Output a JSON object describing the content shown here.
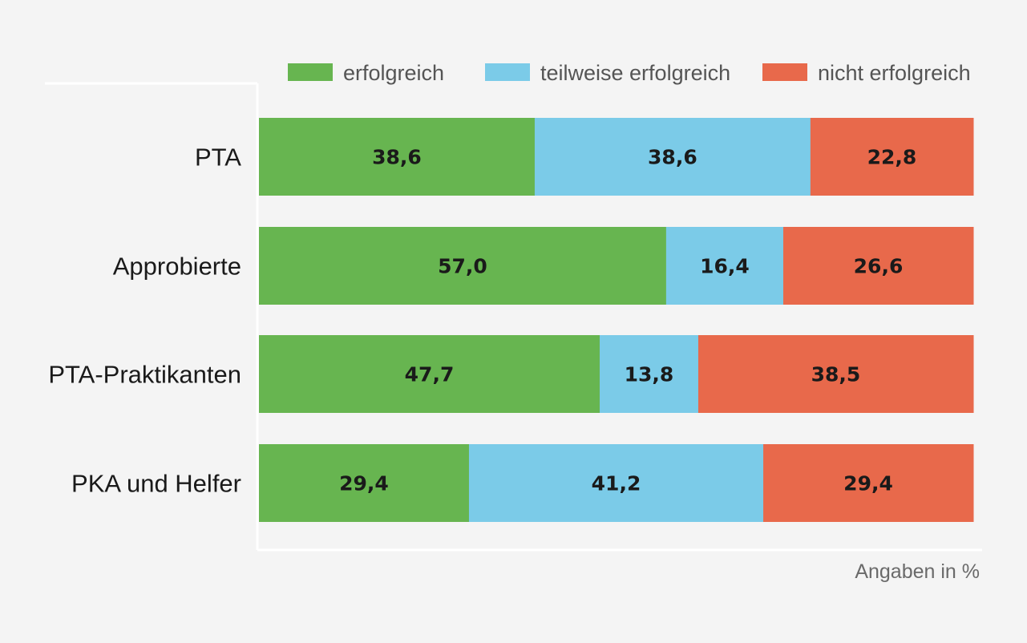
{
  "chart_data": {
    "type": "bar",
    "orientation": "horizontal",
    "stacked": true,
    "title": "",
    "xlabel": "",
    "ylabel": "",
    "unit_note": "Angaben in %",
    "xlim": [
      0,
      100
    ],
    "grid": false,
    "legend_position": "top-right",
    "categories": [
      "PTA",
      "Approbierte",
      "PTA-Praktikanten",
      "PKA und Helfer"
    ],
    "series": [
      {
        "name": "erfolgreich",
        "color": "#67b550",
        "values": [
          38.6,
          57.0,
          47.7,
          29.4
        ],
        "labels": [
          "38,6",
          "57,0",
          "47,7",
          "29,4"
        ]
      },
      {
        "name": "teilweise erfolgreich",
        "color": "#7bcbe8",
        "values": [
          38.6,
          16.4,
          13.8,
          41.2
        ],
        "labels": [
          "38,6",
          "16,4",
          "13,8",
          "41,2"
        ]
      },
      {
        "name": "nicht erfolgreich",
        "color": "#e8694b",
        "values": [
          22.8,
          26.6,
          38.5,
          29.4
        ],
        "labels": [
          "22,8",
          "26,6",
          "38,5",
          "29,4"
        ]
      }
    ]
  }
}
